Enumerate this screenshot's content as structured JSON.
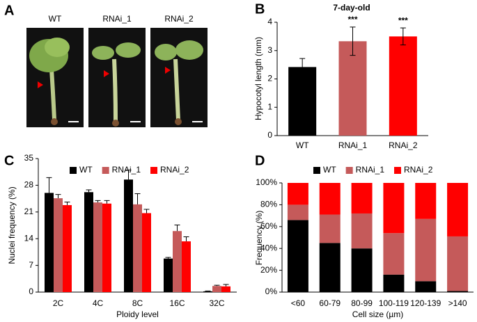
{
  "photo_panel": {
    "panel_label": "A",
    "labels": [
      "WT",
      "RNAi_1",
      "RNAi_2"
    ]
  },
  "chart_data": [
    {
      "type": "bar",
      "panel_label": "B",
      "title": "7-day-old",
      "ylabel": "Hypocotyl length (mm)",
      "categories": [
        "WT",
        "RNAi_1",
        "RNAi_2"
      ],
      "values": [
        2.42,
        3.33,
        3.5
      ],
      "errors": [
        0.3,
        0.5,
        0.3
      ],
      "colors": [
        "#000000",
        "#c55a5a",
        "#ff0000"
      ],
      "annotations": [
        null,
        "***",
        "***"
      ],
      "ylim": [
        0,
        4
      ],
      "yticks": [
        0,
        1,
        2,
        3,
        4
      ]
    },
    {
      "type": "bar",
      "panel_label": "C",
      "xlabel": "Ploidy level",
      "ylabel": "Nuclei frequency (%)",
      "categories": [
        "2C",
        "4C",
        "8C",
        "16C",
        "32C"
      ],
      "series": [
        {
          "name": "WT",
          "color": "#000000",
          "values": [
            26,
            26.2,
            29.5,
            8.8,
            0.2
          ],
          "errors": [
            4,
            0.6,
            2.5,
            0.3,
            0.1
          ]
        },
        {
          "name": "RNAi_1",
          "color": "#c55a5a",
          "values": [
            24.6,
            23.5,
            23,
            16,
            1.6
          ],
          "errors": [
            1,
            0.5,
            2.8,
            1.6,
            0.2
          ]
        },
        {
          "name": "RNAi_2",
          "color": "#ff0000",
          "values": [
            22.8,
            23.2,
            20.7,
            13.3,
            1.5
          ],
          "errors": [
            0.8,
            0.8,
            1,
            1.2,
            0.5
          ]
        }
      ],
      "ylim": [
        0,
        35
      ],
      "yticks": [
        0,
        7,
        14,
        21,
        28,
        35
      ],
      "legend": "top"
    },
    {
      "type": "stacked_bar",
      "panel_label": "D",
      "xlabel": "Cell size (µm)",
      "ylabel": "Frequency (%)",
      "categories": [
        "<60",
        "60-79",
        "80-99",
        "100-119",
        "120-139",
        ">140"
      ],
      "series": [
        {
          "name": "WT",
          "color": "#000000",
          "values": [
            66,
            45,
            40,
            16,
            10,
            1
          ]
        },
        {
          "name": "RNAi_1",
          "color": "#c55a5a",
          "values": [
            14,
            26,
            32,
            38,
            57,
            50
          ]
        },
        {
          "name": "RNAi_2",
          "color": "#ff0000",
          "values": [
            20,
            29,
            28,
            46,
            33,
            49
          ]
        }
      ],
      "ylim": [
        0,
        100
      ],
      "yticks": [
        {
          "value": 0,
          "label": "0%"
        },
        {
          "value": 20,
          "label": "20%"
        },
        {
          "value": 40,
          "label": "40%"
        },
        {
          "value": 60,
          "label": "60%"
        },
        {
          "value": 80,
          "label": "80%"
        },
        {
          "value": 100,
          "label": "100%"
        }
      ],
      "legend": "top"
    }
  ]
}
